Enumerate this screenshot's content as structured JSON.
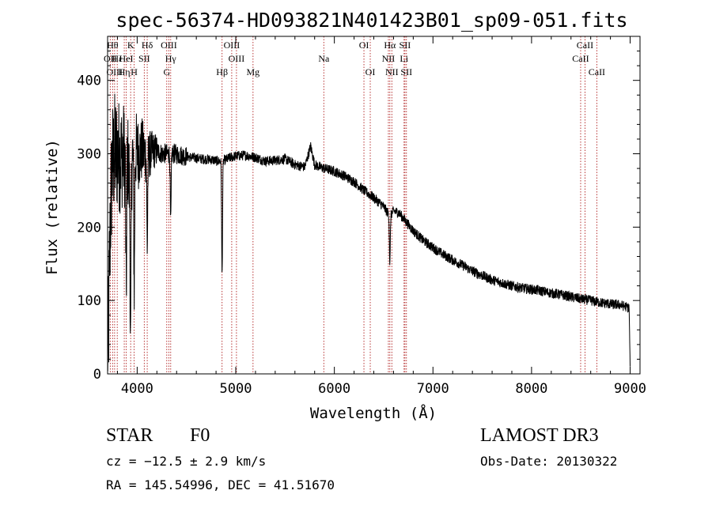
{
  "chart_data": {
    "type": "line",
    "title": "spec-56374-HD093821N401423B01_sp09-051.fits",
    "xlabel": "Wavelength (Å)",
    "ylabel": "Flux (relative)",
    "xlim": [
      3700,
      9100
    ],
    "ylim": [
      0,
      460
    ],
    "xticks": [
      "4000",
      "5000",
      "6000",
      "7000",
      "8000",
      "9000"
    ],
    "xtick_values": [
      4000,
      5000,
      6000,
      7000,
      8000,
      9000
    ],
    "yticks": [
      "0",
      "100",
      "200",
      "300",
      "400"
    ],
    "ytick_values": [
      0,
      100,
      200,
      300,
      400
    ],
    "series": [
      {
        "name": "flux",
        "anchors_x": [
          3700,
          3710,
          3720,
          3730,
          3745,
          3770,
          3800,
          3830,
          3860,
          3889,
          3900,
          3933,
          3950,
          3970,
          3990,
          4020,
          4050,
          4102,
          4130,
          4180,
          4250,
          4300,
          4340,
          4380,
          4450,
          4550,
          4650,
          4750,
          4820,
          4861,
          4900,
          4950,
          5000,
          5100,
          5200,
          5300,
          5400,
          5500,
          5600,
          5700,
          5760,
          5800,
          5850,
          5900,
          6000,
          6100,
          6200,
          6300,
          6400,
          6500,
          6563,
          6600,
          6650,
          6700,
          6800,
          6900,
          7000,
          7100,
          7200,
          7300,
          7400,
          7500,
          7600,
          7700,
          7800,
          7900,
          8000,
          8100,
          8200,
          8300,
          8400,
          8500,
          8600,
          8700,
          8800,
          8900,
          8990,
          9000
        ],
        "anchors_y": [
          5,
          60,
          150,
          220,
          280,
          300,
          300,
          295,
          300,
          290,
          300,
          240,
          300,
          290,
          305,
          300,
          305,
          295,
          300,
          305,
          300,
          300,
          300,
          300,
          298,
          295,
          293,
          292,
          290,
          290,
          292,
          295,
          297,
          298,
          295,
          290,
          291,
          293,
          285,
          282,
          310,
          285,
          282,
          280,
          276,
          270,
          262,
          250,
          240,
          228,
          215,
          222,
          220,
          212,
          195,
          182,
          172,
          163,
          155,
          148,
          140,
          134,
          128,
          124,
          120,
          117,
          115,
          113,
          110,
          108,
          105,
          102,
          100,
          97,
          95,
          94,
          90,
          10
        ],
        "noise_amplitude": 7
      }
    ],
    "absorption_features": [
      {
        "x": 3889,
        "depth": 180
      },
      {
        "x": 3933,
        "depth": 210
      },
      {
        "x": 3970,
        "depth": 170
      },
      {
        "x": 4102,
        "depth": 120
      },
      {
        "x": 4340,
        "depth": 95
      },
      {
        "x": 4861,
        "depth": 155
      },
      {
        "x": 6563,
        "depth": 65
      }
    ],
    "line_markers": [
      {
        "x": 3727,
        "label": "OII",
        "row": 1
      },
      {
        "x": 3751,
        "label": "Hθ",
        "row": 0
      },
      {
        "x": 3771,
        "label": "OIII",
        "row": 2
      },
      {
        "x": 3798,
        "label": "Hε",
        "row": 1
      },
      {
        "x": 3869,
        "label": "Hη",
        "row": 2
      },
      {
        "x": 3889,
        "label": "HeI",
        "row": 1
      },
      {
        "x": 3934,
        "label": "K",
        "row": 0
      },
      {
        "x": 3969,
        "label": "H",
        "row": 2
      },
      {
        "x": 4072,
        "label": "SII",
        "row": 1
      },
      {
        "x": 4102,
        "label": "Hδ",
        "row": 0
      },
      {
        "x": 4300,
        "label": "G",
        "row": 2
      },
      {
        "x": 4321,
        "label": "OIII",
        "row": 0
      },
      {
        "x": 4340,
        "label": "Hγ",
        "row": 1
      },
      {
        "x": 4861,
        "label": "Hβ",
        "row": 2
      },
      {
        "x": 4959,
        "label": "OIII",
        "row": 0
      },
      {
        "x": 5007,
        "label": "OIII",
        "row": 1
      },
      {
        "x": 5175,
        "label": "Mg",
        "row": 2
      },
      {
        "x": 5893,
        "label": "Na",
        "row": 1
      },
      {
        "x": 6300,
        "label": "OI",
        "row": 0
      },
      {
        "x": 6364,
        "label": "OI",
        "row": 2
      },
      {
        "x": 6548,
        "label": "NII",
        "row": 1
      },
      {
        "x": 6563,
        "label": "Hα",
        "row": 0
      },
      {
        "x": 6583,
        "label": "NII",
        "row": 2
      },
      {
        "x": 6707,
        "label": "Li",
        "row": 1
      },
      {
        "x": 6716,
        "label": "SII",
        "row": 0
      },
      {
        "x": 6731,
        "label": "SII",
        "row": 2
      },
      {
        "x": 8498,
        "label": "CaII",
        "row": 1
      },
      {
        "x": 8542,
        "label": "CaII",
        "row": 0
      },
      {
        "x": 8662,
        "label": "CaII",
        "row": 2
      }
    ],
    "marker_color": "#b02020",
    "line_color": "#000000"
  },
  "info": {
    "object_class": "STAR",
    "subclass": "F0",
    "survey": "LAMOST DR3",
    "redshift": "cz = −12.5 ± 2.9 km/s",
    "obs_date": "Obs-Date: 20130322",
    "coords": "RA = 145.54996, DEC =  41.51670"
  }
}
